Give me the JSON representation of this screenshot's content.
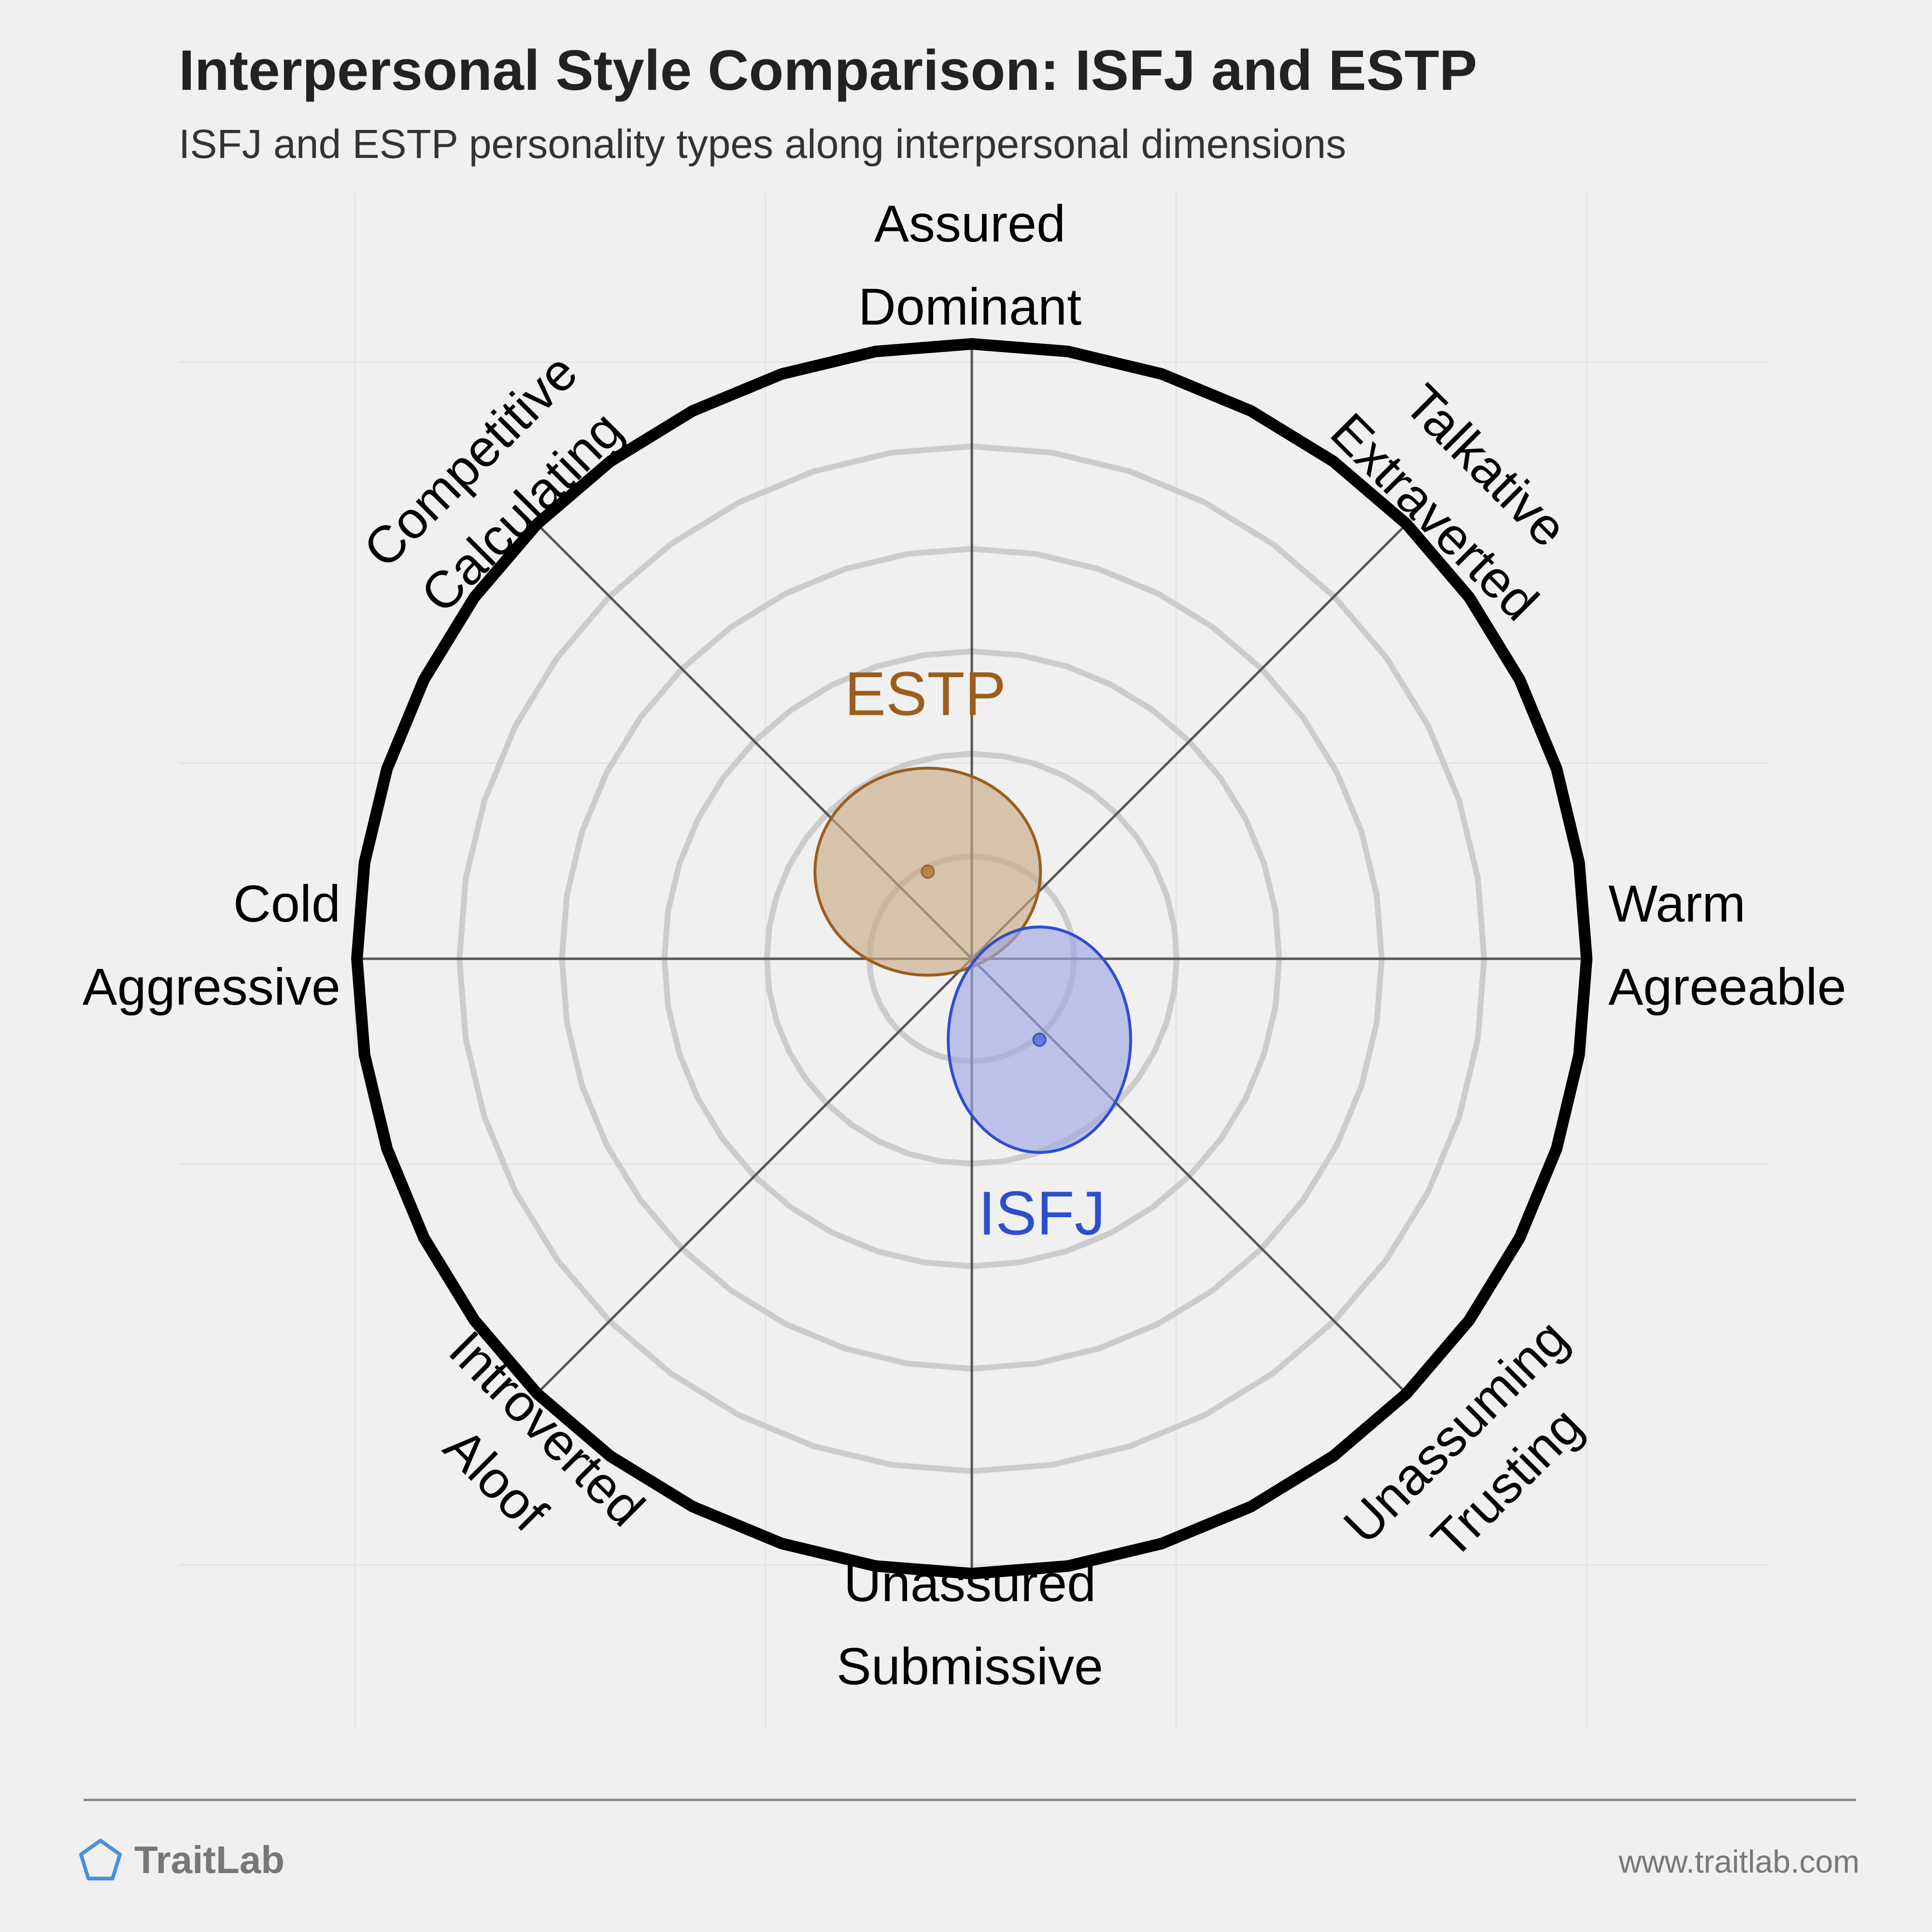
{
  "header": {
    "title": "Interpersonal Style Comparison: ISFJ and ESTP",
    "subtitle": "ISFJ and ESTP personality types along interpersonal dimensions"
  },
  "chart_data": {
    "type": "scatter",
    "title": "Interpersonal Style Comparison: ISFJ and ESTP",
    "subtitle": "ISFJ and ESTP personality types along interpersonal dimensions",
    "axes": [
      {
        "name": "top",
        "labels": [
          "Assured",
          "Dominant"
        ]
      },
      {
        "name": "top-right",
        "labels": [
          "Talkative",
          "Extraverted"
        ]
      },
      {
        "name": "right",
        "labels": [
          "Warm",
          "Agreeable"
        ]
      },
      {
        "name": "bottom-right",
        "labels": [
          "Unassuming",
          "Trusting"
        ]
      },
      {
        "name": "bottom",
        "labels": [
          "Unassured",
          "Submissive"
        ]
      },
      {
        "name": "bottom-left",
        "labels": [
          "Aloof",
          "Introverted"
        ]
      },
      {
        "name": "left",
        "labels": [
          "Cold",
          "Aggressive"
        ]
      },
      {
        "name": "top-left",
        "labels": [
          "Competitive",
          "Calculating"
        ]
      }
    ],
    "xlim": [
      -6,
      6
    ],
    "ylim": [
      -6,
      6
    ],
    "ring_count": 6,
    "grid": true,
    "series": [
      {
        "name": "ESTP",
        "x": -0.43,
        "y": 0.85,
        "rx": 1.1,
        "ry": 1.01,
        "color": "#9c5e1c",
        "fill": "#c9a987"
      },
      {
        "name": "ISFJ",
        "x": 0.66,
        "y": -0.79,
        "rx": 0.89,
        "ry": 1.1,
        "color": "#2c4fce",
        "fill": "#9ea8e4"
      }
    ]
  },
  "footer": {
    "brand": "TraitLab",
    "url": "www.traitlab.com",
    "brand_icon": "pentagon-icon",
    "brand_color": "#4a90d9"
  }
}
